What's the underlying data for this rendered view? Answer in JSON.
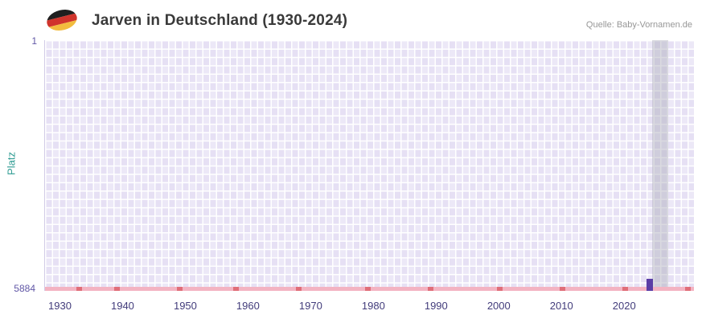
{
  "header": {
    "title": "Jarven in Deutschland (1930-2024)",
    "source": "Quelle: Baby-Vornamen.de",
    "flag_icon": "germany-flag"
  },
  "chart_data": {
    "type": "bar",
    "title": "Jarven in Deutschland (1930-2024)",
    "xlabel": "",
    "ylabel": "Platz",
    "x_range": [
      1930,
      2024
    ],
    "x_ticks": [
      1930,
      1940,
      1950,
      1960,
      1970,
      1980,
      1990,
      2000,
      2010,
      2020
    ],
    "y_axis": {
      "min": 1,
      "max": 5884,
      "top_label": "1",
      "bottom_label": "5884",
      "inverted": true
    },
    "series": [
      {
        "name": "Jarven",
        "points": [
          {
            "year": 2024,
            "rank": 5600
          }
        ]
      }
    ],
    "baseline_marks_years": [
      1933,
      1939,
      1949,
      1958,
      1968,
      1979,
      1989,
      2000,
      2010,
      2020,
      2030
    ],
    "highlight_band": {
      "year": 2025
    },
    "grid": true,
    "legend": false,
    "colors": {
      "bar": "#5a3da6",
      "baseline": "#f3b3c2",
      "baseline_mark": "#e06e79",
      "highlight_band": "rgba(173,173,186,0.45)",
      "grid_cell": "#ece8f7",
      "x_tick_label": "#423c7b",
      "y_tick_label": "#6157a6",
      "y_axis_title": "#2f9c93",
      "title": "#3a3a3a",
      "source": "#979797"
    }
  }
}
